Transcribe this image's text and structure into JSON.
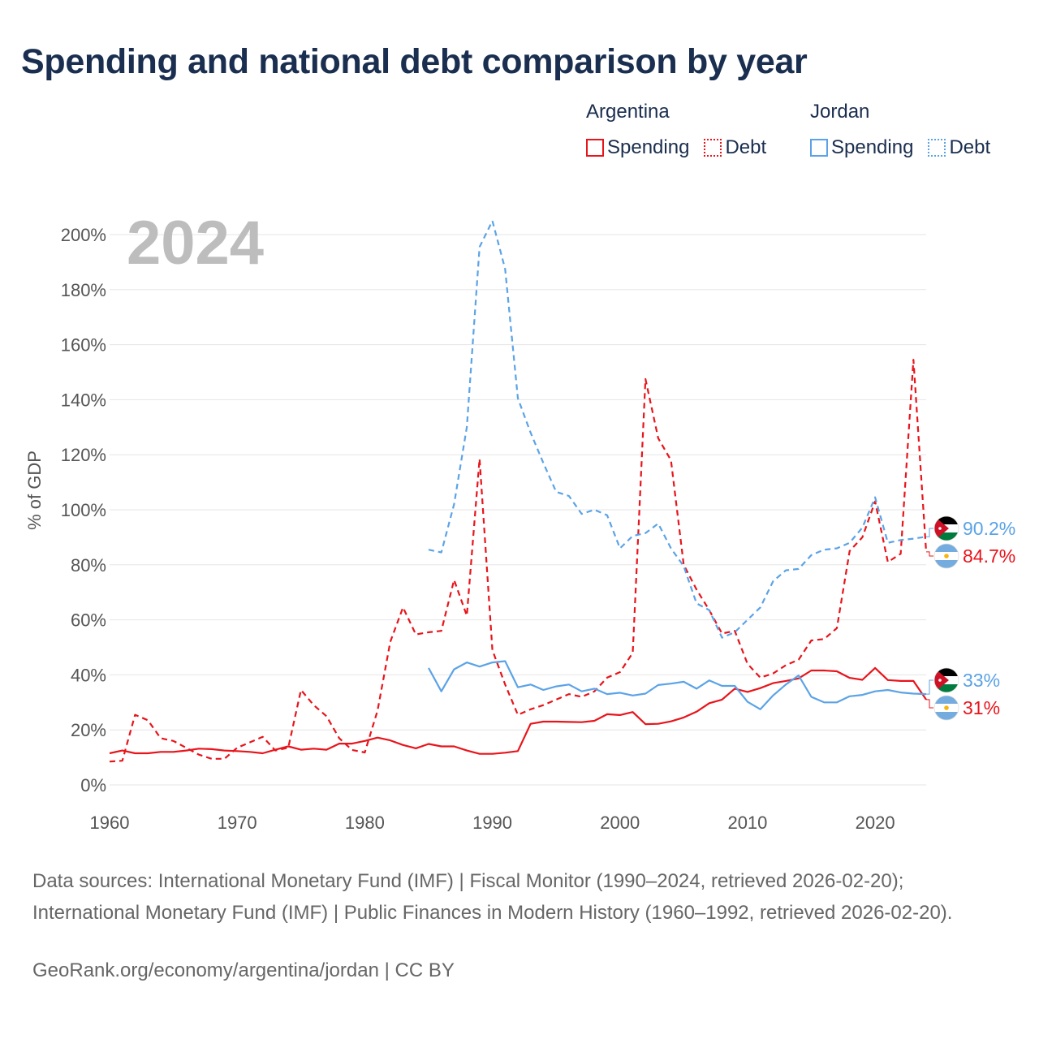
{
  "title": "Spending and national debt comparison by year",
  "legend": [
    {
      "country": "Argentina",
      "items": [
        {
          "label": "Spending",
          "style": "solid",
          "color": "#e8141b"
        },
        {
          "label": "Debt",
          "style": "dotted",
          "color": "#e8141b"
        }
      ]
    },
    {
      "country": "Jordan",
      "items": [
        {
          "label": "Spending",
          "style": "solid",
          "color": "#5ba3e6"
        },
        {
          "label": "Debt",
          "style": "dotted",
          "color": "#5ba3e6"
        }
      ]
    }
  ],
  "colors": {
    "argentina": "#e8141b",
    "jordan": "#5ba3e6",
    "grid": "#e5e5e5",
    "text": "#1a2e4f"
  },
  "chart_data": {
    "type": "line",
    "year_label": "2024",
    "ylabel": "% of GDP",
    "xlim": [
      1960,
      2024
    ],
    "ylim": [
      0,
      200
    ],
    "xticks": [
      1960,
      1970,
      1980,
      1990,
      2000,
      2010,
      2020
    ],
    "yticks": [
      0,
      20,
      40,
      60,
      80,
      100,
      120,
      140,
      160,
      180,
      200
    ],
    "ytick_labels": [
      "0%",
      "20%",
      "40%",
      "60%",
      "80%",
      "100%",
      "120%",
      "140%",
      "160%",
      "180%",
      "200%"
    ],
    "series": [
      {
        "name": "Argentina Spending",
        "country": "Argentina",
        "metric": "Spending",
        "style": "solid",
        "color": "#e8141b",
        "x": [
          1960,
          1961,
          1962,
          1963,
          1964,
          1965,
          1966,
          1967,
          1968,
          1969,
          1970,
          1971,
          1972,
          1973,
          1974,
          1975,
          1976,
          1977,
          1978,
          1979,
          1980,
          1981,
          1982,
          1983,
          1984,
          1985,
          1986,
          1987,
          1988,
          1989,
          1990,
          1991,
          1992,
          1993,
          1994,
          1995,
          1996,
          1997,
          1998,
          1999,
          2000,
          2001,
          2002,
          2003,
          2004,
          2005,
          2006,
          2007,
          2008,
          2009,
          2010,
          2011,
          2012,
          2013,
          2014,
          2015,
          2016,
          2017,
          2018,
          2019,
          2020,
          2021,
          2022,
          2023,
          2024
        ],
        "y": [
          11.5,
          12.5,
          11.5,
          11.5,
          12,
          12,
          12.5,
          13.2,
          13,
          12.5,
          12.3,
          12,
          11.5,
          12.8,
          14,
          12.8,
          13.2,
          12.8,
          15,
          15,
          16,
          17.2,
          16.2,
          14.5,
          13.3,
          14.9,
          14,
          14,
          12.5,
          11.3,
          11.3,
          11.7,
          12.3,
          22.2,
          23,
          23,
          22.9,
          22.8,
          23.3,
          25.7,
          25.4,
          26.5,
          22.1,
          22.2,
          23.1,
          24.5,
          26.6,
          29.7,
          31,
          35,
          33.8,
          35.2,
          37,
          37.8,
          38.7,
          41.6,
          41.6,
          41.3,
          38.9,
          38.2,
          42.5,
          38.1,
          37.8,
          37.8,
          31
        ]
      },
      {
        "name": "Argentina Debt",
        "country": "Argentina",
        "metric": "Debt",
        "style": "dashed",
        "color": "#e8141b",
        "x": [
          1960,
          1961,
          1962,
          1963,
          1964,
          1965,
          1966,
          1967,
          1968,
          1969,
          1970,
          1971,
          1972,
          1973,
          1974,
          1975,
          1976,
          1977,
          1978,
          1979,
          1980,
          1981,
          1982,
          1983,
          1984,
          1985,
          1986,
          1987,
          1988,
          1989,
          1990,
          1991,
          1992,
          1993,
          1994,
          1995,
          1996,
          1997,
          1998,
          1999,
          2000,
          2001,
          2002,
          2003,
          2004,
          2005,
          2006,
          2007,
          2008,
          2009,
          2010,
          2011,
          2012,
          2013,
          2014,
          2015,
          2016,
          2017,
          2018,
          2019,
          2020,
          2021,
          2022,
          2023,
          2024
        ],
        "y": [
          8.5,
          8.8,
          25.5,
          23.5,
          17,
          16,
          13.5,
          11,
          9.5,
          9.5,
          13.5,
          15.5,
          17.5,
          12.5,
          13.5,
          34.5,
          29,
          25,
          17,
          12.7,
          11.8,
          27,
          52,
          64.5,
          54.7,
          55.5,
          56,
          74.5,
          61.5,
          118.5,
          49,
          36.5,
          25.5,
          27.5,
          29,
          31,
          33,
          32,
          34,
          39,
          41,
          48,
          147.5,
          126,
          118,
          80,
          71,
          63.5,
          55,
          56,
          44,
          39,
          40.5,
          43.5,
          45.5,
          52.5,
          53,
          57,
          85,
          90,
          103,
          81,
          84,
          154.5,
          84.7
        ]
      },
      {
        "name": "Jordan Spending",
        "country": "Jordan",
        "metric": "Spending",
        "style": "solid",
        "color": "#5ba3e6",
        "x": [
          1985,
          1986,
          1987,
          1988,
          1989,
          1990,
          1991,
          1992,
          1993,
          1994,
          1995,
          1996,
          1997,
          1998,
          1999,
          2000,
          2001,
          2002,
          2003,
          2004,
          2005,
          2006,
          2007,
          2008,
          2009,
          2010,
          2011,
          2012,
          2013,
          2014,
          2015,
          2016,
          2017,
          2018,
          2019,
          2020,
          2021,
          2022,
          2023,
          2024
        ],
        "y": [
          42.5,
          34,
          42,
          44.5,
          43,
          44.5,
          45,
          35.5,
          36.5,
          34.5,
          35.8,
          36.5,
          34,
          35,
          33,
          33.5,
          32.5,
          33.2,
          36.3,
          36.8,
          37.5,
          35,
          38,
          36,
          36,
          30.2,
          27.5,
          32.5,
          36.5,
          39.8,
          32,
          30,
          30,
          32.2,
          32.7,
          34,
          34.5,
          33.6,
          33.2,
          33
        ]
      },
      {
        "name": "Jordan Debt",
        "country": "Jordan",
        "metric": "Debt",
        "style": "dashed",
        "color": "#5ba3e6",
        "x": [
          1985,
          1986,
          1987,
          1988,
          1989,
          1990,
          1991,
          1992,
          1993,
          1994,
          1995,
          1996,
          1997,
          1998,
          1999,
          2000,
          2001,
          2002,
          2003,
          2004,
          2005,
          2006,
          2007,
          2008,
          2009,
          2010,
          2011,
          2012,
          2013,
          2014,
          2015,
          2016,
          2017,
          2018,
          2019,
          2020,
          2021,
          2022,
          2023,
          2024
        ],
        "y": [
          85.5,
          84.5,
          102,
          130,
          195.5,
          205,
          187.5,
          140.5,
          128,
          117,
          106.5,
          105,
          98.5,
          100,
          98,
          86,
          90.5,
          91.5,
          95,
          86,
          79.5,
          66,
          63.5,
          53.5,
          55.5,
          60,
          64.5,
          74,
          78,
          78.5,
          83.5,
          85.5,
          86,
          88,
          93.5,
          104.5,
          88,
          89,
          89.5,
          90.2
        ]
      }
    ],
    "end_labels": [
      {
        "text": "90.2%",
        "value": 90.2,
        "color": "#5ba3e6",
        "flag": "Jordan",
        "series": "Jordan Debt"
      },
      {
        "text": "84.7%",
        "value": 84.7,
        "color": "#e8141b",
        "flag": "Argentina",
        "series": "Argentina Debt"
      },
      {
        "text": "33%",
        "value": 33,
        "color": "#5ba3e6",
        "flag": "Jordan",
        "series": "Jordan Spending"
      },
      {
        "text": "31%",
        "value": 31,
        "color": "#e8141b",
        "flag": "Argentina",
        "series": "Argentina Spending"
      }
    ]
  },
  "sources": "Data sources: International Monetary Fund (IMF) | Fiscal Monitor (1990–2024, retrieved 2026-02-20); International Monetary Fund (IMF) | Public Finances in Modern History (1960–1992, retrieved 2026-02-20).",
  "credit": "GeoRank.org/economy/argentina/jordan | CC BY"
}
